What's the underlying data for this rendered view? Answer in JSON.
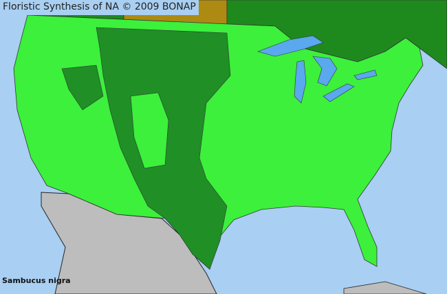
{
  "map": {
    "title": "Floristic Synthesis of NA © 2009 BONAP",
    "species": "Sambucus nigra",
    "colors": {
      "ocean": "#a9cff2",
      "lakes": "#5aa8ee",
      "canada": "#1e8a1e",
      "manitoba": "#ad8a12",
      "mexico": "#bdbdbd",
      "present_county": "#3cf03c",
      "present_state_dark": "#1f8f26",
      "borders": "#444444"
    }
  }
}
